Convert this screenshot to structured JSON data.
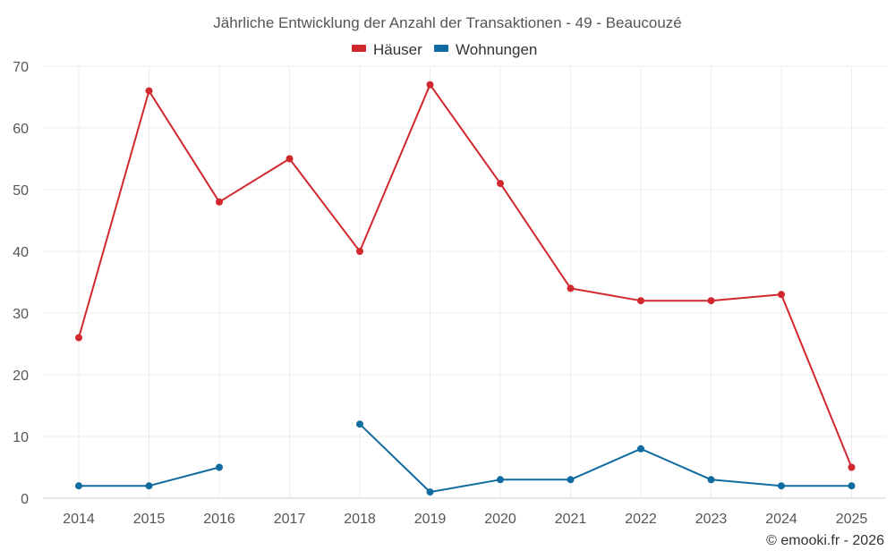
{
  "chart_data": {
    "type": "line",
    "title": "Jährliche Entwicklung der Anzahl der Transaktionen - 49 - Beaucouzé",
    "categories": [
      "2014",
      "2015",
      "2016",
      "2017",
      "2018",
      "2019",
      "2020",
      "2021",
      "2022",
      "2023",
      "2024",
      "2025"
    ],
    "ylim": [
      0,
      70
    ],
    "yticks": [
      0,
      10,
      20,
      30,
      40,
      50,
      60,
      70
    ],
    "grid": true,
    "legend_position": "top-center",
    "series": [
      {
        "name": "Häuser",
        "color": "#d0282e",
        "values": [
          26,
          66,
          48,
          55,
          40,
          67,
          51,
          34,
          32,
          32,
          33,
          5
        ]
      },
      {
        "name": "Wohnungen",
        "color": "#0f6ba0",
        "values": [
          2,
          2,
          5,
          null,
          12,
          1,
          3,
          3,
          8,
          3,
          2,
          2
        ]
      }
    ]
  },
  "credit": "© emooki.fr - 2026"
}
